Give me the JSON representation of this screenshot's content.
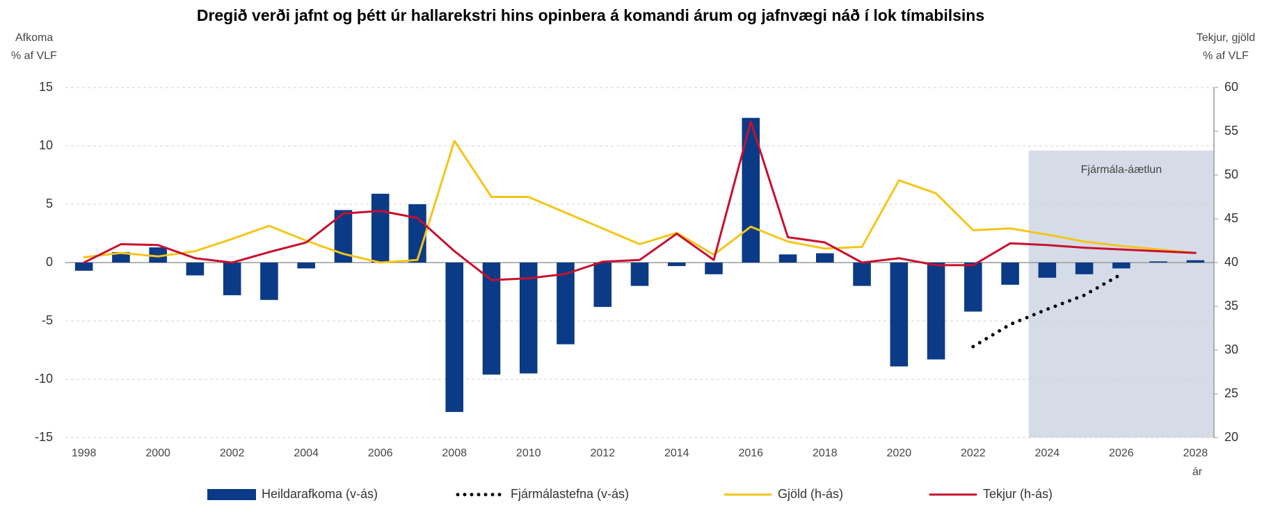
{
  "chart_data": {
    "type": "combo",
    "title": "Dregið verði jafnt og þétt úr hallarekstri hins opinbera á komandi árum og jafnvægi náð í lok tímabilsins",
    "y_label": [
      "Afkoma",
      "% af VLF"
    ],
    "y2_label": [
      "Tekjur, gjöld",
      "% af VLF"
    ],
    "x_label": "ár",
    "x": [
      1998,
      1999,
      2000,
      2001,
      2002,
      2003,
      2004,
      2005,
      2006,
      2007,
      2008,
      2009,
      2010,
      2011,
      2012,
      2013,
      2014,
      2015,
      2016,
      2017,
      2018,
      2019,
      2020,
      2021,
      2022,
      2023,
      2024,
      2025,
      2026,
      2027,
      2028
    ],
    "xlim": [
      1997.5,
      2028.5
    ],
    "xticks": [
      1998,
      2000,
      2002,
      2004,
      2006,
      2008,
      2010,
      2012,
      2014,
      2016,
      2018,
      2020,
      2022,
      2024,
      2026,
      2028
    ],
    "ylim": [
      -15,
      15
    ],
    "yticks": [
      -15,
      -10,
      -5,
      0,
      5,
      10,
      15
    ],
    "y2lim": [
      20,
      60
    ],
    "y2ticks": [
      20,
      25,
      30,
      35,
      40,
      45,
      50,
      55,
      60
    ],
    "grid": true,
    "shade": {
      "label": "Fjármála-áætlun",
      "x0": 2023.5,
      "x1": 2028.5,
      "top": 9.6,
      "color": "#d5dce8"
    },
    "series": [
      {
        "name": "Heildarafkoma (v-ás)",
        "type": "bar",
        "axis": "y",
        "color": "#0b3a86",
        "values": [
          -0.7,
          0.9,
          1.3,
          -1.1,
          -2.8,
          -3.2,
          -0.5,
          4.5,
          5.9,
          5.0,
          -12.8,
          -9.6,
          -9.5,
          -7.0,
          -3.8,
          -2.0,
          -0.3,
          -1.0,
          12.4,
          0.7,
          0.8,
          -2.0,
          -8.9,
          -8.3,
          -4.2,
          -1.9,
          -1.3,
          -1.0,
          -0.5,
          0.1,
          0.2
        ]
      },
      {
        "name": "Fjármálastefna (v-ás)",
        "type": "line",
        "style": "dotted",
        "axis": "y",
        "color": "#000000",
        "values": [
          null,
          null,
          null,
          null,
          null,
          null,
          null,
          null,
          null,
          null,
          null,
          null,
          null,
          null,
          null,
          null,
          null,
          null,
          null,
          null,
          null,
          null,
          null,
          null,
          -7.2,
          -5.3,
          -4.0,
          -2.8,
          -1.0,
          null,
          null
        ]
      },
      {
        "name": "Gjöld (h-ás)",
        "type": "line",
        "style": "solid",
        "axis": "y2",
        "color": "#f5c518",
        "values": [
          40.6,
          41.1,
          40.7,
          41.3,
          42.7,
          44.2,
          42.5,
          41.0,
          40.0,
          40.3,
          53.9,
          47.5,
          47.5,
          45.7,
          43.9,
          42.1,
          43.4,
          40.9,
          44.1,
          42.4,
          41.6,
          41.8,
          49.4,
          47.9,
          43.7,
          43.9,
          43.2,
          42.4,
          41.9,
          41.5,
          41.1
        ]
      },
      {
        "name": "Tekjur (h-ás)",
        "type": "line",
        "style": "solid",
        "axis": "y2",
        "color": "#c8102e",
        "values": [
          40.0,
          42.1,
          42.0,
          40.5,
          40.0,
          41.2,
          42.3,
          45.6,
          45.9,
          45.1,
          41.3,
          38.0,
          38.2,
          38.7,
          40.1,
          40.3,
          43.3,
          40.3,
          56.1,
          42.9,
          42.3,
          40.0,
          40.5,
          39.7,
          39.7,
          42.2,
          42.0,
          41.7,
          41.5,
          41.3,
          41.1
        ]
      }
    ]
  }
}
